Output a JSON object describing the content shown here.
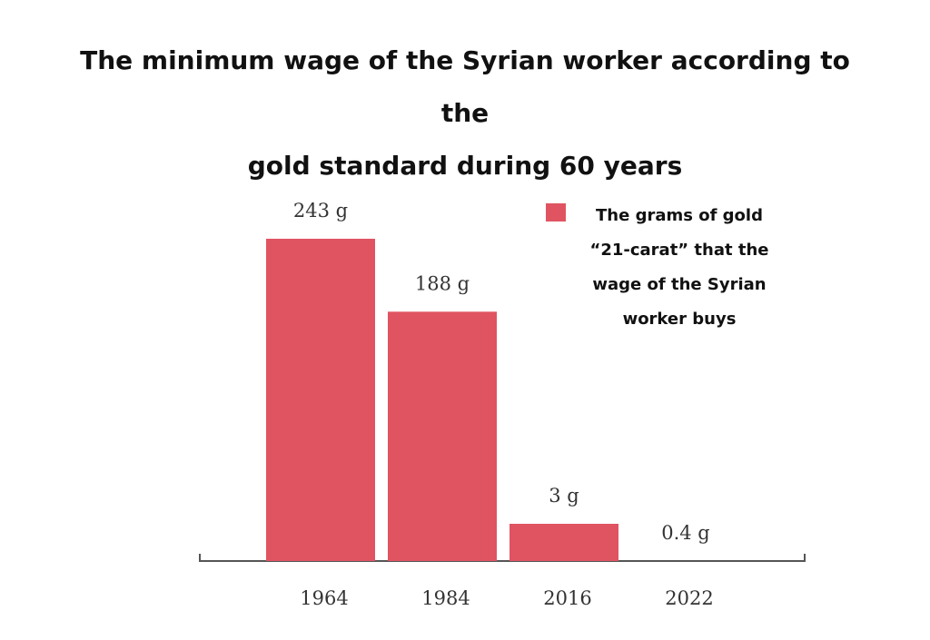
{
  "chart_data": {
    "type": "bar",
    "title_lines": [
      "The minimum wage of the Syrian worker according to the",
      "gold standard during 60 years"
    ],
    "categories": [
      "1964",
      "1984",
      "2016",
      "2022"
    ],
    "values": [
      243,
      188,
      3,
      0.4
    ],
    "value_labels": [
      "243 g",
      "188 g",
      "3 g",
      "0.4 g"
    ],
    "value_scale_note": "bars not to linear scale",
    "legend": {
      "position": "top-right",
      "lines": [
        "The grams of gold",
        "“21-carat” that the",
        "wage of the Syrian",
        "worker buys"
      ]
    },
    "bar_color": "#e05462",
    "xlabel": "",
    "ylabel": "",
    "grid": false
  }
}
